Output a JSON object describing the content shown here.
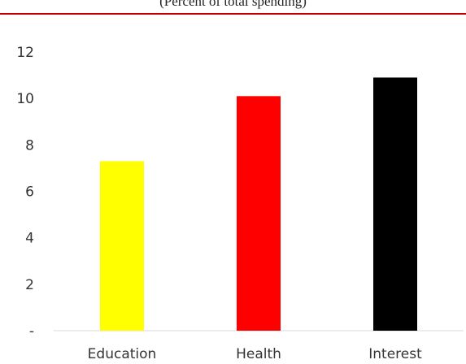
{
  "subtitle": "(Percent of total spending)",
  "chart_data": {
    "type": "bar",
    "title": "",
    "subtitle": "(Percent of total spending)",
    "xlabel": "",
    "ylabel": "",
    "categories": [
      "Education",
      "Health",
      "Interest"
    ],
    "values": [
      7.3,
      10.1,
      10.9
    ],
    "colors": [
      "#ffff00",
      "#ff0000",
      "#000000"
    ],
    "ylim": [
      0,
      12
    ],
    "yticks": [
      0,
      2,
      4,
      6,
      8,
      10,
      12
    ],
    "ytick_labels": [
      "-",
      "2",
      "4",
      "6",
      "8",
      "10",
      "12"
    ],
    "grid": false,
    "legend": "none"
  }
}
